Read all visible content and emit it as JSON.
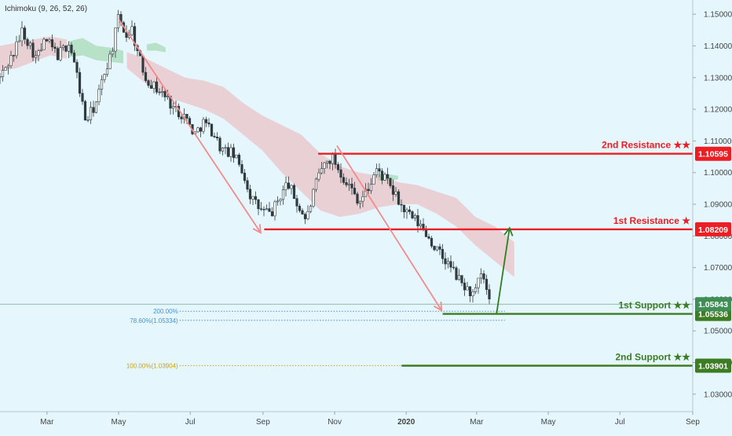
{
  "indicator": "Ichimoku (9, 26, 52, 26)",
  "chart_data": {
    "type": "candlestick",
    "title": "",
    "xlabel": "",
    "ylabel": "",
    "ylim": [
      1.0245,
      1.1545
    ],
    "xlim": [
      "2019-01-20",
      "2020-09-01"
    ],
    "grid": false,
    "x_ticks": [
      {
        "date": "2019-03-01",
        "label": "Mar"
      },
      {
        "date": "2019-05-01",
        "label": "May"
      },
      {
        "date": "2019-07-01",
        "label": "Jul"
      },
      {
        "date": "2019-09-01",
        "label": "Sep"
      },
      {
        "date": "2019-11-01",
        "label": "Nov"
      },
      {
        "date": "2020-01-01",
        "label": "2020"
      },
      {
        "date": "2020-03-01",
        "label": "Mar"
      },
      {
        "date": "2020-05-01",
        "label": "May"
      },
      {
        "date": "2020-07-01",
        "label": "Jul"
      },
      {
        "date": "2020-09-01",
        "label": "Sep"
      }
    ],
    "y_ticks": [
      "1.15000",
      "1.14000",
      "1.13000",
      "1.12000",
      "1.11000",
      "1.10000",
      "1.09000",
      "1.08000",
      "1.07000",
      "1.06000",
      "1.05000",
      "1.04000",
      "1.03000"
    ],
    "price_path": [
      [
        "2019-01-20",
        1.13
      ],
      [
        "2019-02-01",
        1.138
      ],
      [
        "2019-02-08",
        1.145
      ],
      [
        "2019-02-20",
        1.136
      ],
      [
        "2019-02-28",
        1.142
      ],
      [
        "2019-03-10",
        1.137
      ],
      [
        "2019-03-20",
        1.141
      ],
      [
        "2019-03-27",
        1.13
      ],
      [
        "2019-04-03",
        1.116
      ],
      [
        "2019-04-12",
        1.122
      ],
      [
        "2019-04-20",
        1.133
      ],
      [
        "2019-04-25",
        1.138
      ],
      [
        "2019-05-01",
        1.149
      ],
      [
        "2019-05-08",
        1.143
      ],
      [
        "2019-05-12",
        1.146
      ],
      [
        "2019-05-17",
        1.138
      ],
      [
        "2019-05-24",
        1.13
      ],
      [
        "2019-06-01",
        1.127
      ],
      [
        "2019-06-10",
        1.124
      ],
      [
        "2019-06-18",
        1.12
      ],
      [
        "2019-06-26",
        1.118
      ],
      [
        "2019-07-05",
        1.112
      ],
      [
        "2019-07-12",
        1.116
      ],
      [
        "2019-07-20",
        1.113
      ],
      [
        "2019-07-28",
        1.107
      ],
      [
        "2019-08-06",
        1.106
      ],
      [
        "2019-08-14",
        1.101
      ],
      [
        "2019-08-22",
        1.092
      ],
      [
        "2019-08-30",
        1.088
      ],
      [
        "2019-09-08",
        1.087
      ],
      [
        "2019-09-15",
        1.092
      ],
      [
        "2019-09-22",
        1.097
      ],
      [
        "2019-09-30",
        1.09
      ],
      [
        "2019-10-08",
        1.085
      ],
      [
        "2019-10-15",
        1.095
      ],
      [
        "2019-10-22",
        1.102
      ],
      [
        "2019-10-30",
        1.105
      ],
      [
        "2019-11-06",
        1.1
      ],
      [
        "2019-11-15",
        1.095
      ],
      [
        "2019-11-22",
        1.091
      ],
      [
        "2019-11-30",
        1.095
      ],
      [
        "2019-12-06",
        1.101
      ],
      [
        "2019-12-14",
        1.098
      ],
      [
        "2019-12-22",
        1.093
      ],
      [
        "2019-12-30",
        1.088
      ],
      [
        "2020-01-08",
        1.085
      ],
      [
        "2020-01-16",
        1.082
      ],
      [
        "2020-01-24",
        1.077
      ],
      [
        "2020-02-01",
        1.073
      ],
      [
        "2020-02-08",
        1.07
      ],
      [
        "2020-02-15",
        1.066
      ],
      [
        "2020-02-22",
        1.063
      ],
      [
        "2020-02-28",
        1.061
      ],
      [
        "2020-03-03",
        1.066
      ],
      [
        "2020-03-06",
        1.068
      ],
      [
        "2020-03-09",
        1.063
      ],
      [
        "2020-03-12",
        1.058
      ]
    ],
    "cloud": {
      "green": [
        {
          "start": "2019-03-20",
          "end": "2019-05-05",
          "top": [
            1.1415,
            1.1425,
            1.14,
            1.1395,
            1.1385
          ],
          "bottom": [
            1.1365,
            1.137,
            1.1355,
            1.135,
            1.1345
          ]
        },
        {
          "start": "2019-05-25",
          "end": "2019-06-10",
          "top": [
            1.1405,
            1.141,
            1.1395
          ],
          "bottom": [
            1.1385,
            1.1385,
            1.138
          ]
        },
        {
          "start": "2019-12-08",
          "end": "2019-12-25",
          "top": [
            1.0995,
            1.0995,
            1.099
          ],
          "bottom": [
            1.0975,
            1.0975,
            1.0978
          ]
        }
      ],
      "red": [
        {
          "start": "2019-01-20",
          "end": "2019-03-18",
          "top": [
            1.14,
            1.141,
            1.142,
            1.143,
            1.142
          ],
          "bottom": [
            1.132,
            1.133,
            1.135,
            1.137,
            1.136
          ]
        },
        {
          "start": "2019-05-08",
          "end": "2020-04-02",
          "top": [
            1.138,
            1.136,
            1.133,
            1.13,
            1.129,
            1.127,
            1.122,
            1.118,
            1.115,
            1.112,
            1.106,
            1.102,
            1.1,
            1.099,
            1.097,
            1.096,
            1.094,
            1.092,
            1.086,
            1.083,
            1.078
          ],
          "bottom": [
            1.133,
            1.128,
            1.124,
            1.122,
            1.12,
            1.117,
            1.112,
            1.107,
            1.1,
            1.094,
            1.088,
            1.086,
            1.087,
            1.089,
            1.09,
            1.09,
            1.087,
            1.083,
            1.077,
            1.072,
            1.067
          ]
        }
      ]
    },
    "arrows": [
      {
        "from": [
          "2019-05-01",
          1.1485
        ],
        "to": [
          "2019-08-30",
          1.081
        ],
        "color": "#f28b8b"
      },
      {
        "from": [
          "2019-11-03",
          1.1085
        ],
        "to": [
          "2020-01-31",
          1.0565
        ],
        "color": "#f28b8b"
      },
      {
        "from": [
          "2020-03-18",
          1.0555
        ],
        "to": [
          "2020-03-29",
          1.0825
        ],
        "color": "#2e7d1e"
      }
    ],
    "levels": [
      {
        "key": "r2",
        "price": 1.10595,
        "label": "1.10595",
        "name": "2nd Resistance ★★",
        "color": "#ee1d23",
        "start": "2019-10-18"
      },
      {
        "key": "r1",
        "price": 1.08209,
        "label": "1.08209",
        "name": "1st Resistance ★",
        "color": "#ee1d23",
        "start": "2019-09-02"
      },
      {
        "key": "s1",
        "price": 1.05536,
        "label": "1.05536",
        "name": "1st Support ★★",
        "color": "#3c7d24",
        "start": "2020-02-01"
      },
      {
        "key": "s2",
        "price": 1.03901,
        "label": "1.03901",
        "name": "2nd Support ★★",
        "color": "#3c7d24",
        "start": "2019-12-28"
      }
    ],
    "current_price": {
      "price": 1.05843,
      "label": "1.05843",
      "color": "#3e8e56"
    },
    "fib_levels": [
      {
        "price": 1.0562,
        "text": "200.00%",
        "color": "#4a90c8"
      },
      {
        "price": 1.05334,
        "text": "78.60%(1.05334)",
        "color": "#4a90c8"
      },
      {
        "price": 1.03904,
        "text": "100.00%(1.03904)",
        "color": "#c8a20a"
      }
    ]
  }
}
